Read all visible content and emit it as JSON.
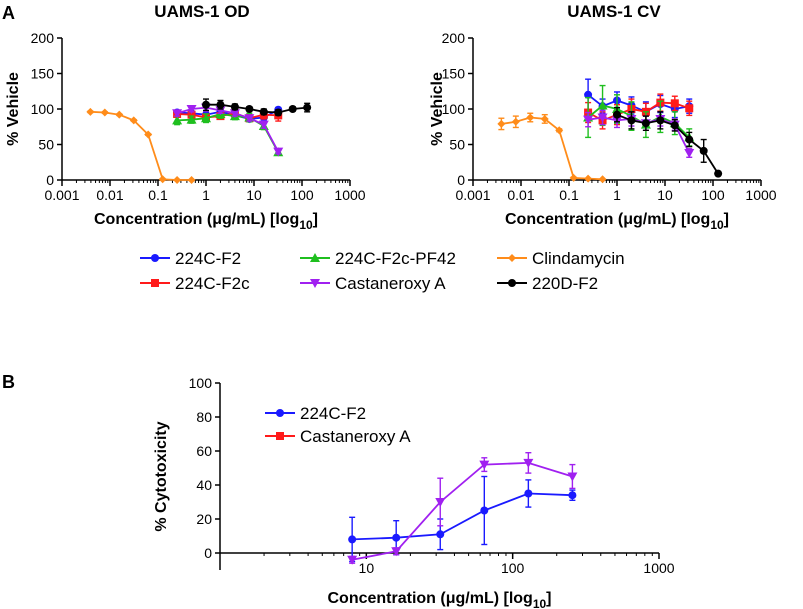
{
  "panels": {
    "a": "A",
    "b": "B"
  },
  "series_styles": [
    {
      "name": "224C-F2",
      "color": "#1a1aff",
      "marker": "circle"
    },
    {
      "name": "224C-F2c",
      "color": "#ff1a1a",
      "marker": "square"
    },
    {
      "name": "224C-F2c-PF42",
      "color": "#1fbf1f",
      "marker": "triangle-up"
    },
    {
      "name": "Castaneroxy A",
      "color": "#a020f0",
      "marker": "triangle-down"
    },
    {
      "name": "Clindamycin",
      "color": "#ff8c1a",
      "marker": "diamond"
    },
    {
      "name": "220D-F2",
      "color": "#000000",
      "marker": "circle"
    }
  ],
  "chart_data": [
    {
      "type": "line",
      "title": "UAMS-1 OD",
      "xlabel": "Concentration (μg/mL) [log",
      "xlabel_sub": "10",
      "xlabel_end": "]",
      "ylabel": "% Vehicle",
      "xscale": "log",
      "xlim": [
        0.001,
        1000
      ],
      "ylim": [
        0,
        200
      ],
      "xticks": [
        0.001,
        0.01,
        0.1,
        1,
        10,
        100,
        1000
      ],
      "xtick_labels": [
        "0.001",
        "0.01",
        "0.1",
        "1",
        "10",
        "100",
        "1000"
      ],
      "yticks": [
        0,
        50,
        100,
        150,
        200
      ],
      "series": [
        {
          "name": "224C-F2",
          "x": [
            0.25,
            0.5,
            1,
            2,
            4,
            8,
            16,
            32
          ],
          "y": [
            95,
            94,
            92,
            96,
            91,
            86,
            88,
            99
          ],
          "err": [
            3,
            3,
            3,
            4,
            4,
            3,
            4,
            3
          ]
        },
        {
          "name": "224C-F2c",
          "x": [
            0.25,
            0.5,
            1,
            2,
            4,
            8,
            16,
            32
          ],
          "y": [
            93,
            92,
            88,
            90,
            94,
            87,
            92,
            91
          ],
          "err": [
            4,
            4,
            5,
            4,
            5,
            5,
            6,
            8
          ]
        },
        {
          "name": "224C-F2c-PF42",
          "x": [
            0.25,
            0.5,
            1,
            2,
            4,
            8,
            16,
            32
          ],
          "y": [
            84,
            85,
            87,
            93,
            90,
            88,
            76,
            39
          ],
          "err": [
            6,
            5,
            6,
            6,
            5,
            6,
            5,
            3
          ]
        },
        {
          "name": "Castaneroxy A",
          "x": [
            0.25,
            0.5,
            1,
            2,
            4,
            8,
            16,
            32
          ],
          "y": [
            94,
            100,
            102,
            98,
            94,
            87,
            78,
            40
          ],
          "err": [
            4,
            4,
            5,
            4,
            4,
            4,
            5,
            3
          ]
        },
        {
          "name": "Clindamycin",
          "x": [
            0.0039,
            0.0078,
            0.0156,
            0.03125,
            0.0625,
            0.125,
            0.25,
            0.5
          ],
          "y": [
            96,
            95,
            92,
            84,
            64,
            1,
            0,
            0
          ],
          "err": [
            1,
            1,
            1,
            1,
            1,
            1,
            0,
            0
          ]
        },
        {
          "name": "220D-F2",
          "x": [
            1,
            2,
            4,
            8,
            16,
            32,
            64,
            128
          ],
          "y": [
            106,
            106,
            103,
            100,
            96,
            95,
            100,
            102
          ],
          "err": [
            8,
            6,
            4,
            3,
            4,
            4,
            3,
            6
          ]
        }
      ]
    },
    {
      "type": "line",
      "title": "UAMS-1 CV",
      "xlabel": "Concentration (μg/mL) [log",
      "xlabel_sub": "10",
      "xlabel_end": "]",
      "ylabel": "% Vehicle",
      "xscale": "log",
      "xlim": [
        0.001,
        1000
      ],
      "ylim": [
        0,
        200
      ],
      "xticks": [
        0.001,
        0.01,
        0.1,
        1,
        10,
        100,
        1000
      ],
      "xtick_labels": [
        "0.001",
        "0.01",
        "0.1",
        "1",
        "10",
        "100",
        "1000"
      ],
      "yticks": [
        0,
        50,
        100,
        150,
        200
      ],
      "series": [
        {
          "name": "224C-F2",
          "x": [
            0.25,
            0.5,
            1,
            2,
            4,
            8,
            16,
            32
          ],
          "y": [
            120,
            104,
            112,
            105,
            96,
            107,
            100,
            104
          ],
          "err": [
            22,
            10,
            12,
            12,
            14,
            12,
            12,
            10
          ]
        },
        {
          "name": "224C-F2c",
          "x": [
            0.25,
            0.5,
            1,
            2,
            4,
            8,
            16,
            32
          ],
          "y": [
            95,
            84,
            92,
            100,
            96,
            109,
            108,
            101
          ],
          "err": [
            14,
            12,
            14,
            14,
            12,
            12,
            10,
            10
          ]
        },
        {
          "name": "224C-F2c-PF42",
          "x": [
            0.25,
            0.5,
            1,
            2,
            4,
            8,
            16,
            32
          ],
          "y": [
            88,
            105,
            100,
            90,
            78,
            89,
            80,
            60
          ],
          "err": [
            28,
            28,
            20,
            20,
            18,
            22,
            16,
            12
          ]
        },
        {
          "name": "Castaneroxy A",
          "x": [
            0.25,
            0.5,
            1,
            2,
            4,
            8,
            16,
            32
          ],
          "y": [
            85,
            88,
            84,
            86,
            80,
            86,
            78,
            38
          ],
          "err": [
            10,
            10,
            10,
            10,
            10,
            10,
            8,
            6
          ]
        },
        {
          "name": "Clindamycin",
          "x": [
            0.0039,
            0.0078,
            0.0156,
            0.03125,
            0.0625,
            0.125,
            0.25,
            0.5
          ],
          "y": [
            79,
            82,
            88,
            86,
            70,
            3,
            2,
            1
          ],
          "err": [
            8,
            8,
            6,
            6,
            2,
            1,
            0,
            0
          ]
        },
        {
          "name": "220D-F2",
          "x": [
            1,
            2,
            4,
            8,
            16,
            32,
            64,
            128
          ],
          "y": [
            92,
            84,
            80,
            84,
            77,
            57,
            41,
            9
          ],
          "err": [
            10,
            12,
            10,
            12,
            8,
            10,
            16,
            2
          ]
        }
      ]
    },
    {
      "type": "line",
      "xlabel": "Concentration (μg/mL) [log",
      "xlabel_sub": "10",
      "xlabel_end": "]",
      "ylabel": "% Cytotoxicity",
      "xscale": "log",
      "xlim": [
        1,
        1000
      ],
      "ylim": [
        -10,
        100
      ],
      "xticks": [
        10,
        100,
        1000
      ],
      "xtick_labels": [
        "10",
        "100",
        "1000"
      ],
      "yticks": [
        0,
        20,
        40,
        60,
        80,
        100
      ],
      "legend": "top-left",
      "series": [
        {
          "name": "224C-F2",
          "x": [
            8,
            16,
            32,
            64,
            128,
            256
          ],
          "y": [
            8,
            9,
            11,
            25,
            35,
            34
          ],
          "err": [
            13,
            10,
            9,
            20,
            8,
            3
          ]
        },
        {
          "name": "Castaneroxy A",
          "x": [
            8,
            16,
            32,
            64,
            128,
            256
          ],
          "y": [
            -4,
            1,
            30,
            52,
            53,
            45
          ],
          "err": [
            2,
            2,
            14,
            4,
            6,
            7
          ]
        }
      ]
    }
  ]
}
